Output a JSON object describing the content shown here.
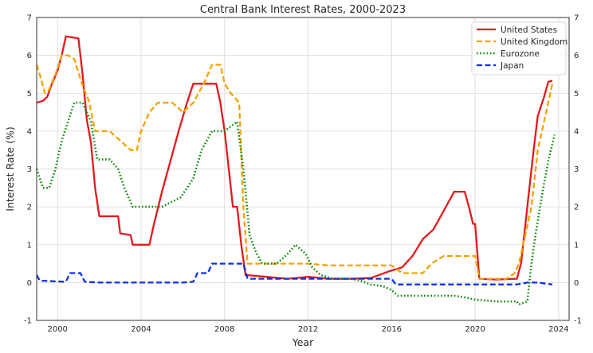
{
  "chart_data": {
    "type": "line",
    "title": "Central Bank Interest Rates, 2000-2023",
    "xlabel": "Year",
    "ylabel": "Interest Rate (%)",
    "xlim": [
      1999.0,
      2024.5
    ],
    "ylim": [
      -1,
      7
    ],
    "x_ticks": [
      2000,
      2004,
      2008,
      2012,
      2016,
      2020,
      2024
    ],
    "y_ticks": [
      -1,
      0,
      1,
      2,
      3,
      4,
      5,
      6,
      7
    ],
    "grid": true,
    "secondary_y_axis": true,
    "legend_position": "top-right",
    "series": [
      {
        "name": "United States",
        "color": "#e31a1c",
        "style": "solid",
        "points": [
          [
            1999.0,
            4.75
          ],
          [
            1999.3,
            4.8
          ],
          [
            1999.5,
            4.9
          ],
          [
            1999.7,
            5.2
          ],
          [
            2000.0,
            5.6
          ],
          [
            2000.2,
            6.0
          ],
          [
            2000.4,
            6.5
          ],
          [
            2001.0,
            6.45
          ],
          [
            2001.2,
            5.5
          ],
          [
            2001.4,
            4.3
          ],
          [
            2001.6,
            3.7
          ],
          [
            2001.8,
            2.5
          ],
          [
            2002.0,
            1.75
          ],
          [
            2002.5,
            1.75
          ],
          [
            2002.9,
            1.75
          ],
          [
            2003.0,
            1.3
          ],
          [
            2003.5,
            1.25
          ],
          [
            2003.6,
            1.0
          ],
          [
            2004.0,
            1.0
          ],
          [
            2004.4,
            1.0
          ],
          [
            2004.6,
            1.5
          ],
          [
            2005.0,
            2.4
          ],
          [
            2005.4,
            3.2
          ],
          [
            2005.8,
            4.0
          ],
          [
            2006.2,
            4.75
          ],
          [
            2006.5,
            5.25
          ],
          [
            2007.0,
            5.25
          ],
          [
            2007.6,
            5.25
          ],
          [
            2007.8,
            4.75
          ],
          [
            2008.0,
            4.0
          ],
          [
            2008.2,
            3.0
          ],
          [
            2008.4,
            2.0
          ],
          [
            2008.6,
            2.0
          ],
          [
            2008.8,
            1.0
          ],
          [
            2009.0,
            0.2
          ],
          [
            2010.0,
            0.15
          ],
          [
            2011.0,
            0.1
          ],
          [
            2012.0,
            0.15
          ],
          [
            2013.0,
            0.1
          ],
          [
            2014.0,
            0.1
          ],
          [
            2015.0,
            0.12
          ],
          [
            2015.9,
            0.3
          ],
          [
            2016.5,
            0.4
          ],
          [
            2017.0,
            0.7
          ],
          [
            2017.5,
            1.15
          ],
          [
            2018.0,
            1.4
          ],
          [
            2018.5,
            1.9
          ],
          [
            2019.0,
            2.4
          ],
          [
            2019.5,
            2.4
          ],
          [
            2019.7,
            2.0
          ],
          [
            2019.9,
            1.55
          ],
          [
            2020.0,
            1.55
          ],
          [
            2020.2,
            0.1
          ],
          [
            2021.0,
            0.08
          ],
          [
            2022.0,
            0.1
          ],
          [
            2022.2,
            0.5
          ],
          [
            2022.4,
            1.5
          ],
          [
            2022.6,
            2.5
          ],
          [
            2022.8,
            3.5
          ],
          [
            2023.0,
            4.4
          ],
          [
            2023.3,
            4.9
          ],
          [
            2023.5,
            5.3
          ],
          [
            2023.7,
            5.33
          ]
        ]
      },
      {
        "name": "United Kingdom",
        "color": "#f5a300",
        "style": "dashed",
        "points": [
          [
            1999.0,
            5.75
          ],
          [
            1999.2,
            5.4
          ],
          [
            1999.4,
            5.0
          ],
          [
            1999.6,
            5.1
          ],
          [
            1999.9,
            5.5
          ],
          [
            2000.2,
            6.0
          ],
          [
            2000.5,
            6.0
          ],
          [
            2000.8,
            5.9
          ],
          [
            2001.2,
            5.2
          ],
          [
            2001.5,
            4.8
          ],
          [
            2001.8,
            4.0
          ],
          [
            2002.0,
            4.0
          ],
          [
            2002.5,
            4.0
          ],
          [
            2003.0,
            3.75
          ],
          [
            2003.5,
            3.5
          ],
          [
            2003.8,
            3.5
          ],
          [
            2004.0,
            4.0
          ],
          [
            2004.4,
            4.5
          ],
          [
            2004.8,
            4.75
          ],
          [
            2005.5,
            4.75
          ],
          [
            2006.0,
            4.5
          ],
          [
            2006.5,
            4.75
          ],
          [
            2007.0,
            5.25
          ],
          [
            2007.4,
            5.75
          ],
          [
            2007.8,
            5.75
          ],
          [
            2008.0,
            5.25
          ],
          [
            2008.3,
            5.0
          ],
          [
            2008.7,
            4.75
          ],
          [
            2008.9,
            2.0
          ],
          [
            2009.1,
            0.5
          ],
          [
            2010.0,
            0.5
          ],
          [
            2011.0,
            0.5
          ],
          [
            2012.0,
            0.5
          ],
          [
            2013.0,
            0.45
          ],
          [
            2014.0,
            0.45
          ],
          [
            2015.0,
            0.45
          ],
          [
            2016.0,
            0.45
          ],
          [
            2016.5,
            0.25
          ],
          [
            2017.5,
            0.25
          ],
          [
            2017.9,
            0.5
          ],
          [
            2018.5,
            0.7
          ],
          [
            2019.5,
            0.7
          ],
          [
            2020.0,
            0.7
          ],
          [
            2020.2,
            0.1
          ],
          [
            2021.5,
            0.1
          ],
          [
            2021.9,
            0.25
          ],
          [
            2022.1,
            0.5
          ],
          [
            2022.4,
            1.25
          ],
          [
            2022.7,
            2.0
          ],
          [
            2023.0,
            3.5
          ],
          [
            2023.4,
            4.5
          ],
          [
            2023.7,
            5.25
          ]
        ]
      },
      {
        "name": "Eurozone",
        "color": "#0a8a0a",
        "style": "dotted",
        "points": [
          [
            1999.0,
            3.0
          ],
          [
            1999.3,
            2.5
          ],
          [
            1999.6,
            2.5
          ],
          [
            1999.9,
            3.0
          ],
          [
            2000.2,
            3.75
          ],
          [
            2000.5,
            4.25
          ],
          [
            2000.8,
            4.75
          ],
          [
            2001.2,
            4.75
          ],
          [
            2001.6,
            4.25
          ],
          [
            2001.9,
            3.25
          ],
          [
            2002.5,
            3.25
          ],
          [
            2002.9,
            3.0
          ],
          [
            2003.2,
            2.5
          ],
          [
            2003.6,
            2.0
          ],
          [
            2004.0,
            2.0
          ],
          [
            2005.0,
            2.0
          ],
          [
            2005.9,
            2.25
          ],
          [
            2006.5,
            2.75
          ],
          [
            2006.9,
            3.5
          ],
          [
            2007.4,
            4.0
          ],
          [
            2008.0,
            4.0
          ],
          [
            2008.6,
            4.25
          ],
          [
            2008.9,
            3.0
          ],
          [
            2009.2,
            1.25
          ],
          [
            2009.5,
            0.8
          ],
          [
            2009.8,
            0.5
          ],
          [
            2010.5,
            0.5
          ],
          [
            2011.0,
            0.75
          ],
          [
            2011.4,
            1.0
          ],
          [
            2011.9,
            0.75
          ],
          [
            2012.2,
            0.4
          ],
          [
            2012.6,
            0.2
          ],
          [
            2013.2,
            0.1
          ],
          [
            2014.0,
            0.1
          ],
          [
            2014.5,
            0.05
          ],
          [
            2015.0,
            -0.05
          ],
          [
            2015.6,
            -0.1
          ],
          [
            2016.0,
            -0.2
          ],
          [
            2016.3,
            -0.35
          ],
          [
            2017.0,
            -0.35
          ],
          [
            2018.0,
            -0.35
          ],
          [
            2019.0,
            -0.35
          ],
          [
            2019.6,
            -0.4
          ],
          [
            2020.0,
            -0.45
          ],
          [
            2021.0,
            -0.5
          ],
          [
            2022.0,
            -0.5
          ],
          [
            2022.1,
            -0.58
          ],
          [
            2022.5,
            -0.5
          ],
          [
            2022.7,
            0.5
          ],
          [
            2022.9,
            1.3
          ],
          [
            2023.2,
            2.3
          ],
          [
            2023.5,
            3.2
          ],
          [
            2023.8,
            3.9
          ]
        ]
      },
      {
        "name": "Japan",
        "color": "#1030e0",
        "style": "dashed",
        "points": [
          [
            1999.0,
            0.2
          ],
          [
            1999.15,
            0.05
          ],
          [
            2000.4,
            0.02
          ],
          [
            2000.6,
            0.25
          ],
          [
            2001.1,
            0.25
          ],
          [
            2001.3,
            0.02
          ],
          [
            2002.0,
            0.0
          ],
          [
            2006.0,
            0.0
          ],
          [
            2006.5,
            0.02
          ],
          [
            2006.7,
            0.25
          ],
          [
            2007.2,
            0.25
          ],
          [
            2007.4,
            0.5
          ],
          [
            2008.9,
            0.5
          ],
          [
            2009.0,
            0.3
          ],
          [
            2009.1,
            0.1
          ],
          [
            2010.0,
            0.1
          ],
          [
            2014.0,
            0.1
          ],
          [
            2015.0,
            0.1
          ],
          [
            2016.0,
            0.1
          ],
          [
            2016.2,
            -0.05
          ],
          [
            2018.0,
            -0.05
          ],
          [
            2020.0,
            -0.05
          ],
          [
            2022.0,
            -0.05
          ],
          [
            2022.5,
            0.0
          ],
          [
            2023.0,
            0.0
          ],
          [
            2023.7,
            -0.05
          ]
        ]
      }
    ]
  }
}
